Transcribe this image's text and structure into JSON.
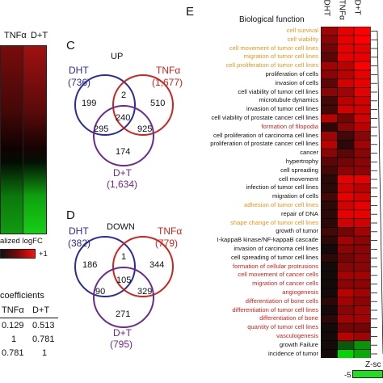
{
  "colors": {
    "orange": "#e8961e",
    "red": "#d0231d",
    "black": "#111111",
    "dht": "#2b2b9a",
    "tnf": "#d0231d",
    "dt": "#6b2a8e",
    "heat_red": "#ff1a1a",
    "heat_green": "#22dd22"
  },
  "panel_left": {
    "col_headers": [
      "TNFα",
      "D+T"
    ],
    "legend_label": "alized logFC",
    "legend_max": "+1",
    "corr_title": "coefficients",
    "corr_headers": [
      "TNFα",
      "D+T"
    ],
    "corr_rows": [
      [
        "0.129",
        "0.513"
      ],
      [
        "1",
        "0.781"
      ],
      [
        "0.781",
        "1"
      ]
    ]
  },
  "panel_c": {
    "letter": "C",
    "title": "UP",
    "dht": "DHT",
    "dht_n": "(736)",
    "tnf": "TNFα",
    "tnf_n": "(1,677)",
    "dt": "D+T",
    "dt_n": "(1,634)",
    "numbers": [
      "199",
      "2",
      "510",
      "240",
      "295",
      "925",
      "174"
    ]
  },
  "panel_d": {
    "letter": "D",
    "title": "DOWN",
    "dht": "DHT",
    "dht_n": "(382)",
    "tnf": "TNFα",
    "tnf_n": "(779)",
    "dt": "D+T",
    "dt_n": "(795)",
    "numbers": [
      "186",
      "1",
      "344",
      "105",
      "90",
      "329",
      "271"
    ]
  },
  "panel_e": {
    "letter": "E",
    "header": "Biological function",
    "col_headers": [
      "DHT",
      "TNFα",
      "D+T"
    ],
    "functions": [
      {
        "label": "cell survival",
        "color": "orange",
        "z": [
          0.6,
          0.9,
          1.0
        ]
      },
      {
        "label": "cell viability",
        "color": "orange",
        "z": [
          0.5,
          0.9,
          1.0
        ]
      },
      {
        "label": "cell movement of tumor cell lines",
        "color": "orange",
        "z": [
          0.4,
          0.9,
          0.9
        ]
      },
      {
        "label": "migration of tumor cell lines",
        "color": "orange",
        "z": [
          0.3,
          0.9,
          0.9
        ]
      },
      {
        "label": "cell proliferation of tumor cell lines",
        "color": "orange",
        "z": [
          0.6,
          0.7,
          1.0
        ]
      },
      {
        "label": "proliferation of cells",
        "color": "black",
        "z": [
          0.5,
          0.7,
          0.9
        ]
      },
      {
        "label": "invasion of cells",
        "color": "black",
        "z": [
          0.3,
          0.8,
          0.9
        ]
      },
      {
        "label": "cell viability of tumor cell lines",
        "color": "black",
        "z": [
          0.5,
          0.6,
          0.9
        ]
      },
      {
        "label": "microtubule dynamics",
        "color": "black",
        "z": [
          0.2,
          0.7,
          0.8
        ]
      },
      {
        "label": "invasion of tumor cell lines",
        "color": "black",
        "z": [
          0.2,
          0.8,
          0.8
        ]
      },
      {
        "label": "cell viability of prostate cancer cell lines",
        "color": "black",
        "z": [
          0.7,
          0.4,
          0.8
        ]
      },
      {
        "label": "formation of filopodia",
        "color": "red",
        "z": [
          0.1,
          0.5,
          0.7
        ]
      },
      {
        "label": "cell proliferation of carcinoma cell lines",
        "color": "black",
        "z": [
          0.6,
          0.2,
          0.5
        ]
      },
      {
        "label": "proliferation of prostate cancer cell lines",
        "color": "black",
        "z": [
          0.7,
          0.1,
          0.6
        ]
      },
      {
        "label": "cancer",
        "color": "black",
        "z": [
          0.5,
          0.3,
          0.5
        ]
      },
      {
        "label": "hypertrophy",
        "color": "black",
        "z": [
          0.3,
          0.4,
          0.5
        ]
      },
      {
        "label": "cell spreading",
        "color": "black",
        "z": [
          0.2,
          0.5,
          0.5
        ]
      },
      {
        "label": "cell movement",
        "color": "black",
        "z": [
          0.1,
          0.9,
          0.9
        ]
      },
      {
        "label": "infection of tumor cell lines",
        "color": "black",
        "z": [
          0.1,
          0.8,
          0.7
        ]
      },
      {
        "label": "migration of cells",
        "color": "black",
        "z": [
          0.2,
          0.9,
          0.8
        ]
      },
      {
        "label": "adhesion of tumor cell lines",
        "color": "orange",
        "z": [
          0.1,
          0.8,
          0.9
        ]
      },
      {
        "label": "repair of DNA",
        "color": "black",
        "z": [
          0.1,
          0.9,
          0.9
        ]
      },
      {
        "label": "shape change of tumor cell lines",
        "color": "orange",
        "z": [
          0.1,
          0.8,
          0.8
        ]
      },
      {
        "label": "growth of tumor",
        "color": "black",
        "z": [
          0.2,
          0.4,
          0.6
        ]
      },
      {
        "label": "I-kappaB kinase/NF-kappaB cascade",
        "color": "black",
        "z": [
          0.1,
          0.6,
          0.5
        ]
      },
      {
        "label": "invasion of carcinoma cell lines",
        "color": "black",
        "z": [
          0.0,
          0.5,
          0.5
        ]
      },
      {
        "label": "cell spreading of tumor cell lines",
        "color": "black",
        "z": [
          0.1,
          0.4,
          0.5
        ]
      },
      {
        "label": "formation of cellular protrusions",
        "color": "red",
        "z": [
          0.0,
          0.5,
          0.5
        ]
      },
      {
        "label": "cell movement of cancer cells",
        "color": "red",
        "z": [
          0.0,
          0.6,
          0.6
        ]
      },
      {
        "label": "migration of cancer cells",
        "color": "red",
        "z": [
          0.0,
          0.5,
          0.5
        ]
      },
      {
        "label": "angiogenesis",
        "color": "red",
        "z": [
          0.0,
          0.7,
          0.6
        ]
      },
      {
        "label": "differentiation of bone cells",
        "color": "red",
        "z": [
          0.1,
          0.6,
          0.5
        ]
      },
      {
        "label": "differentiation of tumor cell lines",
        "color": "red",
        "z": [
          0.0,
          0.5,
          0.6
        ]
      },
      {
        "label": "differentiation of bone",
        "color": "red",
        "z": [
          0.1,
          0.6,
          0.6
        ]
      },
      {
        "label": "quantity of tumor cell lines",
        "color": "red",
        "z": [
          0.0,
          0.4,
          0.4
        ]
      },
      {
        "label": "vasculogenesis",
        "color": "red",
        "z": [
          0.0,
          0.7,
          0.6
        ]
      },
      {
        "label": "growth Failure",
        "color": "black",
        "z": [
          0.0,
          -0.3,
          -0.6
        ]
      },
      {
        "label": "incidence of tumor",
        "color": "black",
        "z": [
          0.0,
          -0.9,
          -0.7
        ]
      }
    ],
    "zscore_label": "Z-sc",
    "zscore_min": "-5"
  }
}
